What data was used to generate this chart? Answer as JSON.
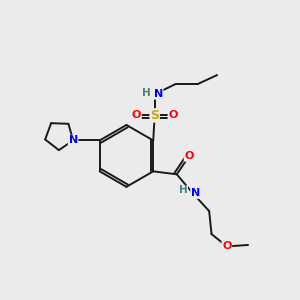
{
  "background_color": "#ebebeb",
  "atom_colors": {
    "C": "#1a1a1a",
    "H": "#4a8080",
    "N": "#0000ff",
    "O": "#ff0000",
    "S": "#ccaa00"
  },
  "bond_color": "#1a1a1a",
  "bond_width": 1.4,
  "figsize": [
    3.0,
    3.0
  ],
  "dpi": 100
}
